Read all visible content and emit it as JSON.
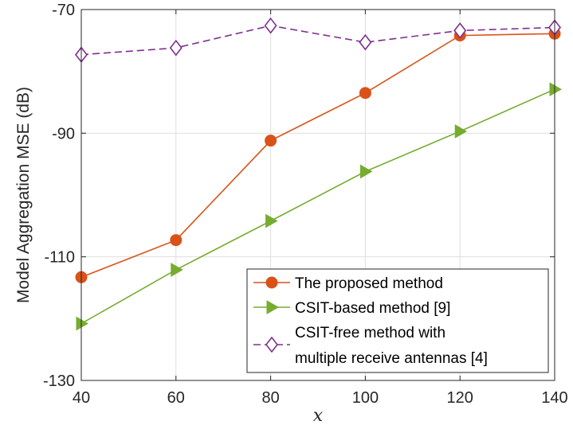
{
  "chart_data": {
    "type": "line",
    "xlabel": "x",
    "ylabel": "Model Aggregation MSE (dB)",
    "xlim": [
      40,
      140
    ],
    "ylim": [
      -130,
      -70
    ],
    "xticks": [
      40,
      60,
      80,
      100,
      120,
      140
    ],
    "yticks": [
      -130,
      -110,
      -90,
      -70
    ],
    "xtick_labels": [
      "40",
      "60",
      "80",
      "100",
      "120",
      "140"
    ],
    "ytick_labels": [
      "-130",
      "-110",
      "-90",
      "-70"
    ],
    "grid": true,
    "legend_position": "bottom-right",
    "x": [
      40,
      60,
      80,
      100,
      120,
      140
    ],
    "series": [
      {
        "name": "The proposed method",
        "values": [
          -113.3,
          -107.3,
          -91.2,
          -83.5,
          -74.2,
          -73.9
        ],
        "color": "#D95319",
        "marker": "circle",
        "dash": "solid"
      },
      {
        "name": "CSIT-based method [9]",
        "values": [
          -120.8,
          -112.1,
          -104.2,
          -96.2,
          -89.7,
          -82.9
        ],
        "color": "#77AC30",
        "marker": "triangle-right",
        "dash": "solid"
      },
      {
        "name": "CSIT-free method with multiple receive antennas [4]",
        "legend_lines": [
          "CSIT-free method with",
          "multiple receive antennas [4]"
        ],
        "values": [
          -77.3,
          -76.2,
          -72.6,
          -75.3,
          -73.4,
          -72.9
        ],
        "color": "#7E2F8E",
        "marker": "diamond",
        "dash": "dashed"
      }
    ]
  }
}
